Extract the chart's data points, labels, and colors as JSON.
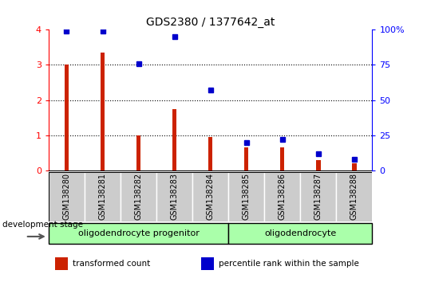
{
  "title": "GDS2380 / 1377642_at",
  "samples": [
    "GSM138280",
    "GSM138281",
    "GSM138282",
    "GSM138283",
    "GSM138284",
    "GSM138285",
    "GSM138286",
    "GSM138287",
    "GSM138288"
  ],
  "transformed_count": [
    3.0,
    3.35,
    1.0,
    1.75,
    0.95,
    0.65,
    0.65,
    0.3,
    0.2
  ],
  "percentile_rank": [
    99,
    99,
    76,
    95,
    57,
    20,
    22,
    12,
    8
  ],
  "ylim_left": [
    0,
    4
  ],
  "ylim_right": [
    0,
    100
  ],
  "yticks_left": [
    0,
    1,
    2,
    3,
    4
  ],
  "yticks_right": [
    0,
    25,
    50,
    75,
    100
  ],
  "yticklabels_right": [
    "0",
    "25",
    "50",
    "75",
    "100%"
  ],
  "groups": [
    {
      "label": "oligodendrocyte progenitor",
      "samples": [
        0,
        1,
        2,
        3,
        4
      ],
      "color": "#AAFFAA"
    },
    {
      "label": "oligodendrocyte",
      "samples": [
        5,
        6,
        7,
        8
      ],
      "color": "#AAFFAA"
    }
  ],
  "bar_color": "#CC2200",
  "dot_color": "#0000CC",
  "tick_bg_color": "#CCCCCC",
  "legend_entries": [
    {
      "color": "#CC2200",
      "label": "transformed count"
    },
    {
      "color": "#0000CC",
      "label": "percentile rank within the sample"
    }
  ],
  "fig_width": 5.3,
  "fig_height": 3.54,
  "dpi": 100
}
